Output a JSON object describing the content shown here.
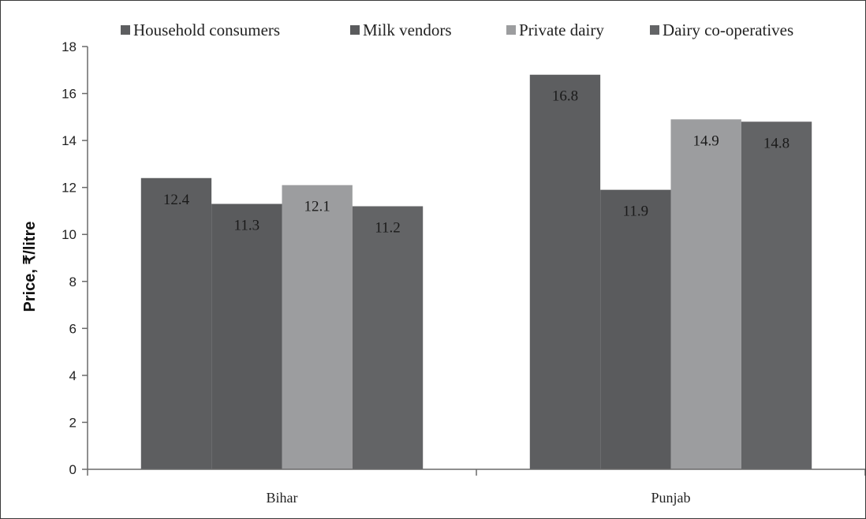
{
  "chart_data": {
    "type": "bar",
    "title": "",
    "xlabel": "",
    "ylabel": "Price, ₹/litre",
    "ylim": [
      0,
      18
    ],
    "yticks": [
      0,
      2,
      4,
      6,
      8,
      10,
      12,
      14,
      16,
      18
    ],
    "categories": [
      "Bihar",
      "Punjab"
    ],
    "legend_position": "top",
    "grid": false,
    "series": [
      {
        "name": "Household consumers",
        "values": [
          12.4,
          16.8
        ],
        "labels": [
          "12.4",
          "16.8"
        ],
        "color": "#5d5e60"
      },
      {
        "name": "Milk vendors",
        "values": [
          11.3,
          11.9
        ],
        "labels": [
          "11.3",
          "11.9"
        ],
        "color": "#5a5b5d"
      },
      {
        "name": "Private dairy",
        "values": [
          12.1,
          14.9
        ],
        "labels": [
          "12.1",
          "14.9"
        ],
        "color": "#9c9d9f"
      },
      {
        "name": "Dairy co-operatives",
        "values": [
          11.2,
          14.8
        ],
        "labels": [
          "11.2",
          "14.8"
        ],
        "color": "#636466"
      }
    ]
  }
}
